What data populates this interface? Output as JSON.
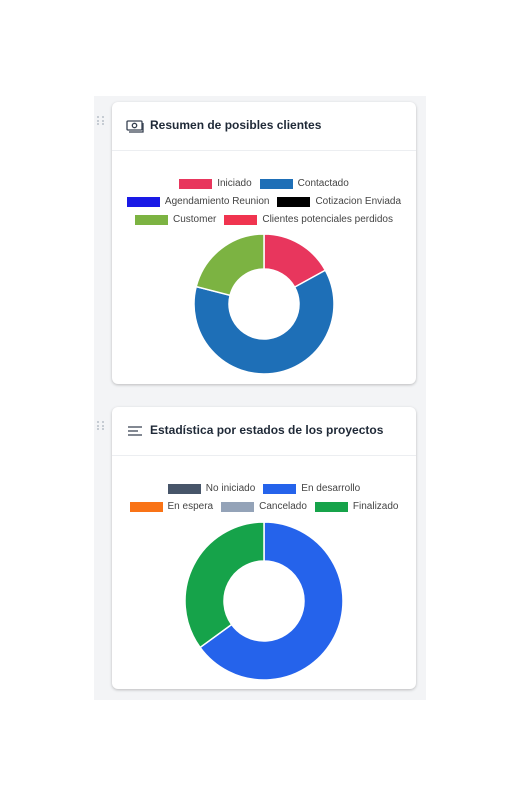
{
  "cards": [
    {
      "title": "Resumen de posibles clientes",
      "icon": "money-icon",
      "chart_data": {
        "type": "pie",
        "donut": true,
        "legend_position": "top",
        "categories": [
          "Iniciado",
          "Contactado",
          "Agendamiento Reunion",
          "Cotizacion Enviada",
          "Customer",
          "Clientes potenciales perdidos"
        ],
        "colors": [
          "#e8365d",
          "#1e6fb7",
          "#1a1ae6",
          "#000000",
          "#7cb342",
          "#f0344f"
        ],
        "values": [
          17,
          62,
          0,
          0,
          21,
          0
        ]
      }
    },
    {
      "title": "Estadística por estados de los proyectos",
      "icon": "list-icon",
      "chart_data": {
        "type": "pie",
        "donut": true,
        "legend_position": "top",
        "categories": [
          "No iniciado",
          "En desarrollo",
          "En espera",
          "Cancelado",
          "Finalizado"
        ],
        "colors": [
          "#475569",
          "#2563eb",
          "#f97316",
          "#94a3b8",
          "#16a34a"
        ],
        "values": [
          0,
          65,
          0,
          0,
          35
        ]
      }
    }
  ]
}
